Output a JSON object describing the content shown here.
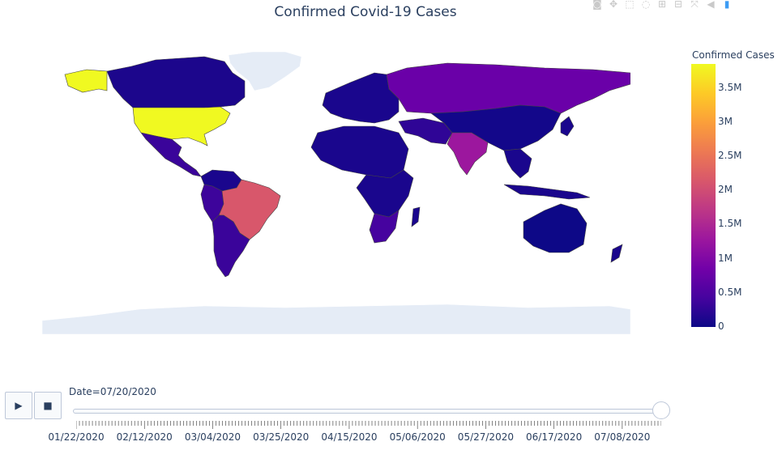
{
  "title": "Confirmed Covid-19 Cases",
  "modebar": {
    "items": [
      "camera-icon",
      "pan-icon",
      "box-select-icon",
      "lasso-icon",
      "zoom-in-icon",
      "zoom-out-icon",
      "autoscale-icon",
      "reset-icon",
      "plotly-logo-icon"
    ]
  },
  "colorbar": {
    "title": "Confirmed Cases",
    "colorscale": [
      "#0d0887",
      "#46039f",
      "#7201a8",
      "#9c179e",
      "#bd3786",
      "#d8576b",
      "#ed7953",
      "#fb9f3a",
      "#fdca26",
      "#f0f921"
    ],
    "ticks": [
      "3.5M",
      "3M",
      "2.5M",
      "2M",
      "1.5M",
      "1M",
      "0.5M",
      "0"
    ],
    "tick_values": [
      3500000,
      3000000,
      2500000,
      2000000,
      1500000,
      1000000,
      500000,
      0
    ],
    "range": [
      0,
      3850000
    ]
  },
  "map": {
    "land_color": "#e5ecf6",
    "border_color": "#444444",
    "countries": [
      {
        "name": "United States",
        "value": 3800000,
        "color": "#f0f921"
      },
      {
        "name": "Alaska",
        "value": 3800000,
        "color": "#f0f921"
      },
      {
        "name": "Canada",
        "value": 110000,
        "color": "#1c068c"
      },
      {
        "name": "Greenland",
        "value": 0,
        "color": "#e5ecf6"
      },
      {
        "name": "Mexico",
        "value": 340000,
        "color": "#3a049a"
      },
      {
        "name": "Brazil",
        "value": 2100000,
        "color": "#d8576b"
      },
      {
        "name": "Peru",
        "value": 350000,
        "color": "#3d049b"
      },
      {
        "name": "Chile",
        "value": 330000,
        "color": "#3a049a"
      },
      {
        "name": "Russia",
        "value": 780000,
        "color": "#6a00a8"
      },
      {
        "name": "India",
        "value": 1150000,
        "color": "#9c179e"
      },
      {
        "name": "South Africa",
        "value": 370000,
        "color": "#46039f"
      },
      {
        "name": "Iran",
        "value": 280000,
        "color": "#2f0596"
      },
      {
        "name": "Australia",
        "value": 12000,
        "color": "#0d0887"
      },
      {
        "name": "China",
        "value": 85000,
        "color": "#13078a"
      },
      {
        "name": "Antarctica",
        "value": 0,
        "color": "#e5ecf6"
      }
    ]
  },
  "slider": {
    "current_label": "Date=07/20/2020",
    "play_label": "▶",
    "stop_label": "■",
    "tick_labels": [
      "01/22/2020",
      "02/12/2020",
      "03/04/2020",
      "03/25/2020",
      "04/15/2020",
      "05/06/2020",
      "05/27/2020",
      "06/17/2020",
      "07/08/2020"
    ],
    "total_steps": 181,
    "current_step": 180
  }
}
